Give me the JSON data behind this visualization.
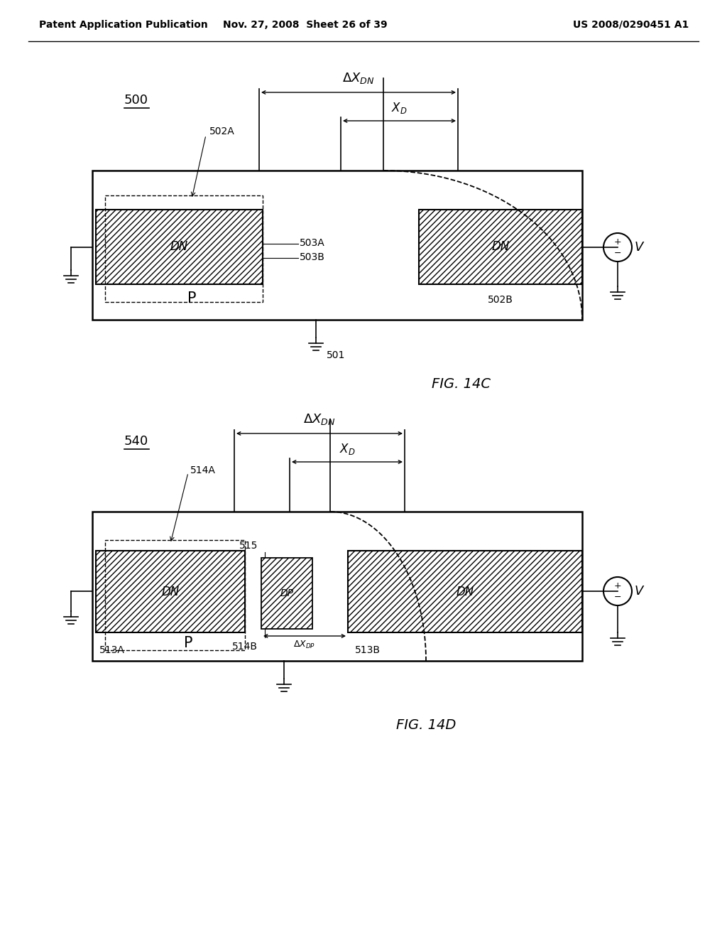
{
  "bg_color": "#ffffff",
  "header_left": "Patent Application Publication",
  "header_mid": "Nov. 27, 2008  Sheet 26 of 39",
  "header_right": "US 2008/0290451 A1"
}
